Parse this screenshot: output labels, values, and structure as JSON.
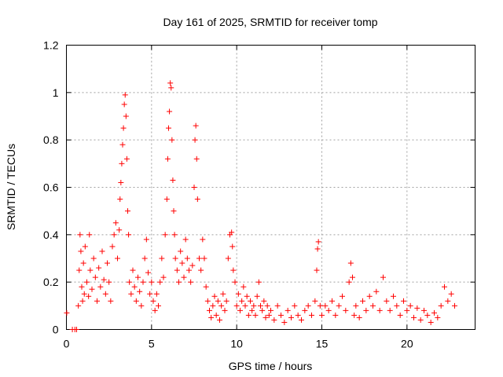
{
  "chart_data": {
    "type": "scatter",
    "title": "Day 161 of 2025, SRMTID for receiver tomp",
    "xlabel": "GPS time / hours",
    "ylabel": "SRMTID / TECUs",
    "xlim": [
      0,
      24
    ],
    "ylim": [
      0,
      1.2
    ],
    "xticks": [
      0,
      5,
      10,
      15,
      20
    ],
    "xtick_labels": [
      "0",
      "5",
      "10",
      "15",
      "20"
    ],
    "yticks": [
      0,
      0.2,
      0.4,
      0.6,
      0.8,
      1.0,
      1.2
    ],
    "ytick_labels": [
      "0",
      "0.2",
      "0.4",
      "0.6",
      "0.8",
      "1",
      "1.2"
    ],
    "grid": true,
    "marker": "+",
    "color": "#ff0000",
    "series": [
      {
        "name": "SRMTID",
        "points": [
          [
            0.02,
            0.07
          ],
          [
            0.35,
            0.0
          ],
          [
            0.5,
            0.0
          ],
          [
            0.6,
            0.0
          ],
          [
            0.7,
            0.1
          ],
          [
            0.75,
            0.25
          ],
          [
            0.8,
            0.4
          ],
          [
            0.85,
            0.33
          ],
          [
            0.9,
            0.18
          ],
          [
            0.95,
            0.12
          ],
          [
            1.0,
            0.28
          ],
          [
            1.05,
            0.15
          ],
          [
            1.1,
            0.35
          ],
          [
            1.2,
            0.2
          ],
          [
            1.3,
            0.14
          ],
          [
            1.35,
            0.4
          ],
          [
            1.4,
            0.25
          ],
          [
            1.5,
            0.17
          ],
          [
            1.6,
            0.3
          ],
          [
            1.7,
            0.22
          ],
          [
            1.8,
            0.12
          ],
          [
            1.9,
            0.26
          ],
          [
            2.0,
            0.18
          ],
          [
            2.1,
            0.33
          ],
          [
            2.2,
            0.21
          ],
          [
            2.3,
            0.15
          ],
          [
            2.4,
            0.28
          ],
          [
            2.5,
            0.2
          ],
          [
            2.6,
            0.12
          ],
          [
            2.7,
            0.35
          ],
          [
            2.8,
            0.4
          ],
          [
            2.9,
            0.45
          ],
          [
            3.0,
            0.3
          ],
          [
            3.1,
            0.42
          ],
          [
            3.15,
            0.55
          ],
          [
            3.2,
            0.62
          ],
          [
            3.25,
            0.7
          ],
          [
            3.3,
            0.78
          ],
          [
            3.35,
            0.85
          ],
          [
            3.4,
            0.95
          ],
          [
            3.45,
            0.99
          ],
          [
            3.5,
            0.9
          ],
          [
            3.55,
            0.72
          ],
          [
            3.6,
            0.5
          ],
          [
            3.65,
            0.4
          ],
          [
            3.7,
            0.2
          ],
          [
            3.8,
            0.15
          ],
          [
            3.9,
            0.25
          ],
          [
            4.0,
            0.18
          ],
          [
            4.1,
            0.12
          ],
          [
            4.2,
            0.22
          ],
          [
            4.3,
            0.16
          ],
          [
            4.4,
            0.1
          ],
          [
            4.5,
            0.2
          ],
          [
            4.6,
            0.3
          ],
          [
            4.7,
            0.38
          ],
          [
            4.8,
            0.24
          ],
          [
            4.9,
            0.15
          ],
          [
            5.0,
            0.2
          ],
          [
            5.1,
            0.12
          ],
          [
            5.2,
            0.08
          ],
          [
            5.3,
            0.15
          ],
          [
            5.4,
            0.1
          ],
          [
            5.5,
            0.2
          ],
          [
            5.6,
            0.3
          ],
          [
            5.7,
            0.22
          ],
          [
            5.8,
            0.4
          ],
          [
            5.9,
            0.55
          ],
          [
            5.95,
            0.72
          ],
          [
            6.0,
            0.85
          ],
          [
            6.05,
            0.92
          ],
          [
            6.1,
            1.04
          ],
          [
            6.15,
            1.02
          ],
          [
            6.2,
            0.8
          ],
          [
            6.25,
            0.63
          ],
          [
            6.3,
            0.5
          ],
          [
            6.35,
            0.4
          ],
          [
            6.4,
            0.3
          ],
          [
            6.5,
            0.25
          ],
          [
            6.6,
            0.2
          ],
          [
            6.7,
            0.33
          ],
          [
            6.8,
            0.28
          ],
          [
            6.9,
            0.22
          ],
          [
            7.0,
            0.38
          ],
          [
            7.1,
            0.3
          ],
          [
            7.2,
            0.25
          ],
          [
            7.3,
            0.2
          ],
          [
            7.4,
            0.27
          ],
          [
            7.5,
            0.6
          ],
          [
            7.55,
            0.8
          ],
          [
            7.6,
            0.86
          ],
          [
            7.65,
            0.72
          ],
          [
            7.7,
            0.55
          ],
          [
            7.8,
            0.3
          ],
          [
            7.9,
            0.25
          ],
          [
            8.0,
            0.38
          ],
          [
            8.1,
            0.3
          ],
          [
            8.2,
            0.18
          ],
          [
            8.3,
            0.12
          ],
          [
            8.4,
            0.08
          ],
          [
            8.5,
            0.05
          ],
          [
            8.6,
            0.1
          ],
          [
            8.7,
            0.14
          ],
          [
            8.8,
            0.06
          ],
          [
            8.9,
            0.12
          ],
          [
            9.0,
            0.04
          ],
          [
            9.1,
            0.1
          ],
          [
            9.2,
            0.15
          ],
          [
            9.3,
            0.08
          ],
          [
            9.4,
            0.12
          ],
          [
            9.5,
            0.3
          ],
          [
            9.6,
            0.4
          ],
          [
            9.7,
            0.41
          ],
          [
            9.75,
            0.35
          ],
          [
            9.8,
            0.25
          ],
          [
            9.9,
            0.2
          ],
          [
            10.0,
            0.1
          ],
          [
            10.1,
            0.15
          ],
          [
            10.2,
            0.08
          ],
          [
            10.3,
            0.12
          ],
          [
            10.4,
            0.18
          ],
          [
            10.5,
            0.1
          ],
          [
            10.6,
            0.14
          ],
          [
            10.7,
            0.06
          ],
          [
            10.8,
            0.12
          ],
          [
            10.9,
            0.08
          ],
          [
            11.0,
            0.1
          ],
          [
            11.1,
            0.06
          ],
          [
            11.2,
            0.14
          ],
          [
            11.3,
            0.2
          ],
          [
            11.4,
            0.1
          ],
          [
            11.5,
            0.08
          ],
          [
            11.6,
            0.12
          ],
          [
            11.7,
            0.05
          ],
          [
            11.8,
            0.1
          ],
          [
            11.9,
            0.06
          ],
          [
            12.0,
            0.08
          ],
          [
            12.2,
            0.04
          ],
          [
            12.4,
            0.1
          ],
          [
            12.6,
            0.06
          ],
          [
            12.8,
            0.03
          ],
          [
            13.0,
            0.08
          ],
          [
            13.2,
            0.05
          ],
          [
            13.4,
            0.1
          ],
          [
            13.6,
            0.06
          ],
          [
            13.8,
            0.04
          ],
          [
            14.0,
            0.08
          ],
          [
            14.2,
            0.1
          ],
          [
            14.4,
            0.06
          ],
          [
            14.6,
            0.12
          ],
          [
            14.7,
            0.25
          ],
          [
            14.75,
            0.34
          ],
          [
            14.8,
            0.37
          ],
          [
            14.9,
            0.1
          ],
          [
            15.0,
            0.06
          ],
          [
            15.2,
            0.1
          ],
          [
            15.4,
            0.08
          ],
          [
            15.6,
            0.12
          ],
          [
            15.8,
            0.06
          ],
          [
            16.0,
            0.1
          ],
          [
            16.2,
            0.14
          ],
          [
            16.4,
            0.08
          ],
          [
            16.6,
            0.2
          ],
          [
            16.7,
            0.28
          ],
          [
            16.8,
            0.22
          ],
          [
            16.9,
            0.06
          ],
          [
            17.0,
            0.1
          ],
          [
            17.2,
            0.05
          ],
          [
            17.4,
            0.12
          ],
          [
            17.6,
            0.08
          ],
          [
            17.8,
            0.14
          ],
          [
            18.0,
            0.1
          ],
          [
            18.2,
            0.16
          ],
          [
            18.4,
            0.08
          ],
          [
            18.6,
            0.22
          ],
          [
            18.8,
            0.12
          ],
          [
            19.0,
            0.08
          ],
          [
            19.2,
            0.14
          ],
          [
            19.4,
            0.1
          ],
          [
            19.6,
            0.06
          ],
          [
            19.8,
            0.12
          ],
          [
            20.0,
            0.08
          ],
          [
            20.2,
            0.1
          ],
          [
            20.4,
            0.05
          ],
          [
            20.6,
            0.09
          ],
          [
            20.8,
            0.04
          ],
          [
            21.0,
            0.08
          ],
          [
            21.2,
            0.06
          ],
          [
            21.4,
            0.03
          ],
          [
            21.6,
            0.07
          ],
          [
            21.8,
            0.05
          ],
          [
            22.0,
            0.1
          ],
          [
            22.2,
            0.18
          ],
          [
            22.4,
            0.12
          ],
          [
            22.6,
            0.15
          ],
          [
            22.8,
            0.1
          ]
        ]
      }
    ]
  }
}
